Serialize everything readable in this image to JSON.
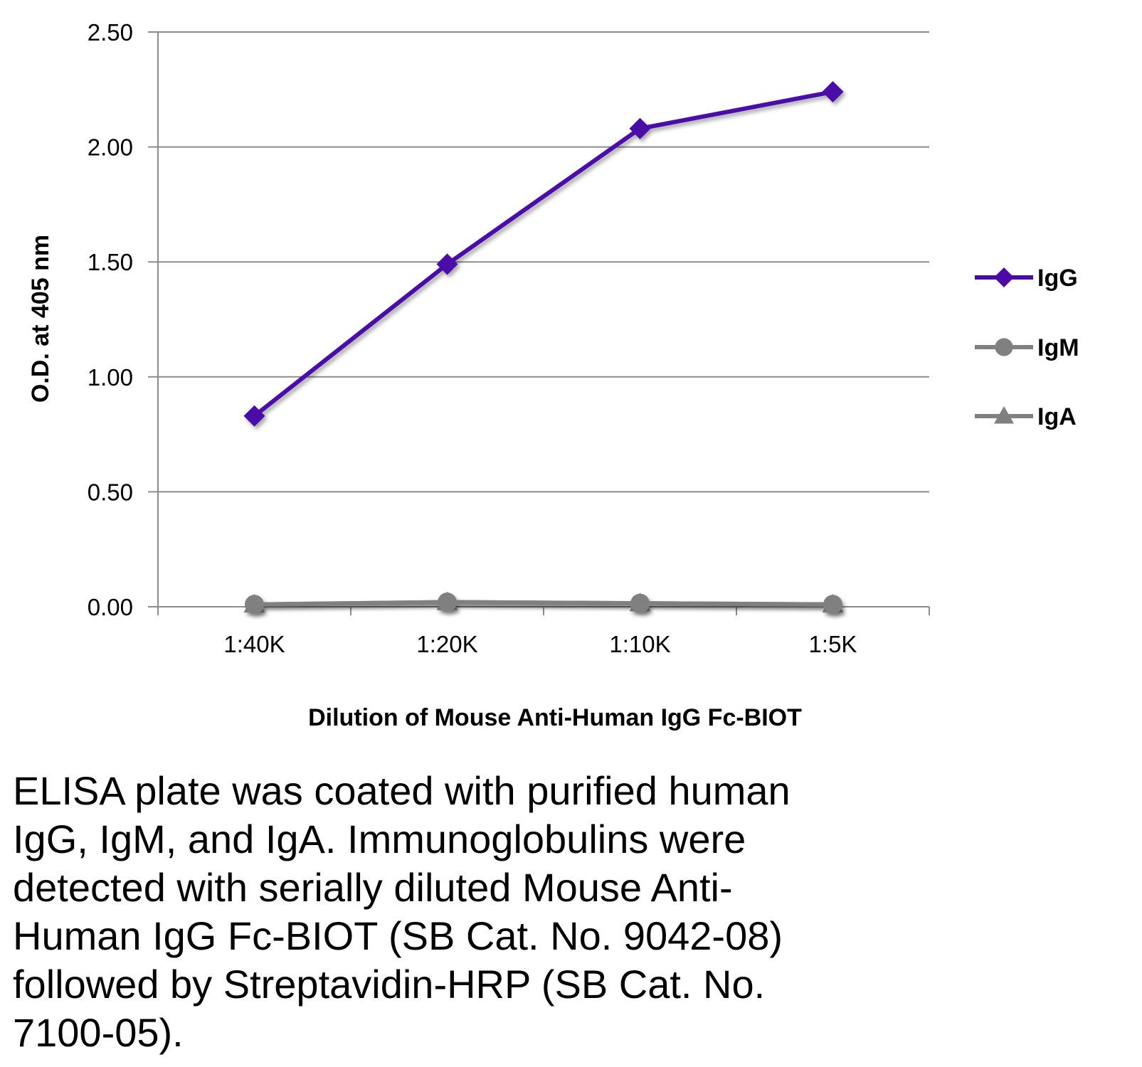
{
  "chart_data": {
    "type": "line",
    "title": "",
    "xlabel": "Dilution of Mouse Anti-Human IgG Fc-BIOT",
    "ylabel": "O.D. at 405 nm",
    "categories": [
      "1:40K",
      "1:20K",
      "1:10K",
      "1:5K"
    ],
    "ylim": [
      0,
      2.5
    ],
    "yticks": [
      "0.00",
      "0.50",
      "1.00",
      "1.50",
      "2.00",
      "2.50"
    ],
    "grid": true,
    "legend_position": "right",
    "series": [
      {
        "name": "IgG",
        "values": [
          0.83,
          1.49,
          2.08,
          2.24
        ],
        "color": "#4b0aa8",
        "marker": "diamond"
      },
      {
        "name": "IgM",
        "values": [
          0.01,
          0.02,
          0.015,
          0.01
        ],
        "color": "#808080",
        "marker": "circle"
      },
      {
        "name": "IgA",
        "values": [
          0.01,
          0.02,
          0.015,
          0.01
        ],
        "color": "#808080",
        "marker": "triangle"
      }
    ]
  },
  "caption": "ELISA plate was coated with purified human\nIgG, IgM, and IgA.  Immunoglobulins were\ndetected with serially diluted Mouse Anti-\nHuman IgG Fc-BIOT (SB Cat. No. 9042-08)\nfollowed by Streptavidin-HRP (SB Cat. No.\n7100-05)."
}
